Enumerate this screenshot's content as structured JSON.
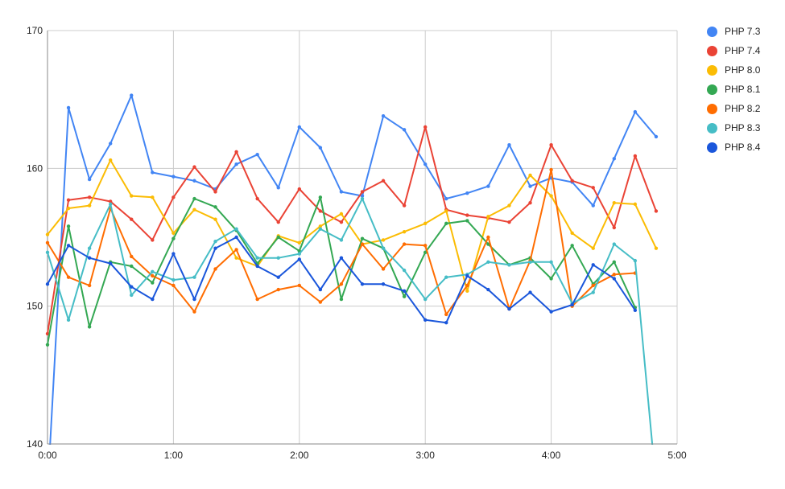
{
  "chart_data": {
    "type": "line",
    "title": "",
    "xlabel": "",
    "ylabel": "",
    "ylim": [
      140,
      170
    ],
    "xlim": [
      0,
      300
    ],
    "y_ticks": [
      "140",
      "150",
      "160",
      "170"
    ],
    "x_ticks": [
      "0:00",
      "1:00",
      "2:00",
      "3:00",
      "4:00",
      "5:00"
    ],
    "x": [
      0,
      10,
      20,
      30,
      40,
      50,
      60,
      70,
      80,
      90,
      100,
      110,
      120,
      130,
      140,
      150,
      160,
      170,
      180,
      190,
      200,
      210,
      220,
      230,
      240,
      250,
      260,
      270,
      280,
      290
    ],
    "grid": true,
    "legend_position": "right",
    "series": [
      {
        "name": "PHP 7.3",
        "color": "#4285F4",
        "values": [
          135.5,
          164.4,
          159.2,
          161.8,
          165.3,
          159.7,
          159.4,
          159.1,
          158.5,
          160.3,
          161.0,
          158.6,
          163.0,
          161.5,
          158.3,
          158.0,
          163.8,
          162.8,
          160.3,
          157.8,
          158.2,
          158.7,
          161.7,
          158.7,
          159.3,
          159.0,
          157.3,
          160.7,
          164.1,
          162.3
        ]
      },
      {
        "name": "PHP 7.4",
        "color": "#EA4335",
        "values": [
          148.0,
          157.7,
          157.9,
          157.6,
          156.3,
          154.8,
          157.9,
          160.1,
          158.3,
          161.2,
          157.8,
          156.1,
          158.5,
          156.9,
          156.1,
          158.3,
          159.1,
          157.3,
          163.0,
          157.0,
          156.6,
          156.4,
          156.1,
          157.5,
          161.7,
          159.1,
          158.6,
          155.7,
          160.9,
          156.9
        ]
      },
      {
        "name": "PHP 8.0",
        "color": "#FBBC04",
        "values": [
          155.2,
          157.1,
          157.3,
          160.6,
          158.0,
          157.9,
          155.3,
          157.0,
          156.3,
          153.5,
          152.9,
          155.1,
          154.6,
          155.8,
          156.7,
          154.5,
          154.8,
          155.4,
          156.0,
          156.9,
          151.1,
          156.5,
          157.3,
          159.5,
          158.0,
          155.3,
          154.2,
          157.5,
          157.4,
          154.2
        ]
      },
      {
        "name": "PHP 8.1",
        "color": "#34A853",
        "values": [
          147.2,
          155.8,
          148.5,
          153.2,
          152.9,
          151.7,
          154.9,
          157.8,
          157.2,
          155.5,
          153.1,
          155.0,
          154.0,
          157.9,
          150.5,
          154.9,
          154.2,
          150.7,
          153.9,
          156.0,
          156.2,
          154.5,
          153.0,
          153.5,
          152.0,
          154.4,
          151.6,
          153.2,
          149.9,
          null
        ]
      },
      {
        "name": "PHP 8.2",
        "color": "#FF6D01",
        "values": [
          154.6,
          152.1,
          151.5,
          157.1,
          153.6,
          152.2,
          151.5,
          149.6,
          152.7,
          154.1,
          150.5,
          151.2,
          151.5,
          150.3,
          151.6,
          154.5,
          152.7,
          154.5,
          154.4,
          149.4,
          151.5,
          155.0,
          149.8,
          153.3,
          159.9,
          150.0,
          151.5,
          152.3,
          152.4,
          null
        ]
      },
      {
        "name": "PHP 8.3",
        "color": "#46BDC6",
        "values": [
          153.9,
          149.0,
          154.2,
          157.4,
          150.8,
          152.5,
          151.9,
          152.1,
          154.7,
          155.6,
          153.5,
          153.5,
          153.8,
          155.6,
          154.8,
          157.8,
          154.2,
          152.6,
          150.5,
          152.1,
          152.3,
          153.2,
          153.0,
          153.2,
          153.2,
          150.2,
          151.0,
          154.5,
          153.3,
          137.0
        ]
      },
      {
        "name": "PHP 8.4",
        "color": "#1A56DB",
        "values": [
          151.6,
          154.4,
          153.5,
          153.1,
          151.4,
          150.5,
          153.8,
          150.5,
          154.2,
          155.0,
          152.9,
          152.1,
          153.4,
          151.2,
          153.5,
          151.6,
          151.6,
          151.1,
          149.0,
          148.8,
          152.2,
          151.2,
          149.8,
          151.0,
          149.6,
          150.1,
          153.0,
          152.0,
          149.7,
          null
        ]
      }
    ]
  }
}
